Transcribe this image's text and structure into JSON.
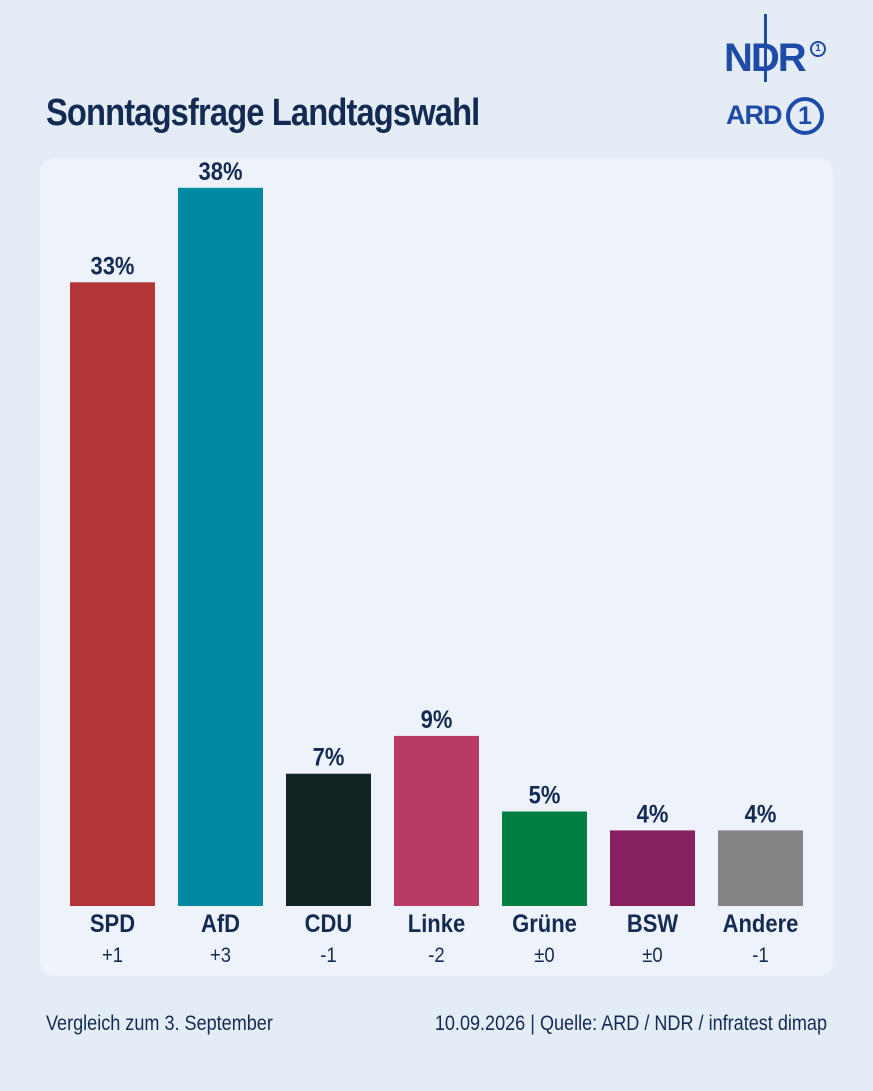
{
  "header": {
    "title": "Sonntagsfrage Landtagswahl",
    "logo_ndr": "NDR",
    "logo_ndr_mark": "1",
    "logo_ard": "ARD",
    "logo_ard_mark": "1"
  },
  "footer": {
    "comparison": "Vergleich zum 3. September",
    "source": "10.09.2026  |  Quelle: ARD / NDR / infratest dimap"
  },
  "chart_data": {
    "type": "bar",
    "title": "Sonntagsfrage Landtagswahl",
    "categories": [
      "SPD",
      "AfD",
      "CDU",
      "Linke",
      "Grüne",
      "BSW",
      "Andere"
    ],
    "values": [
      33,
      38,
      7,
      9,
      5,
      4,
      4
    ],
    "value_labels": [
      "33%",
      "38%",
      "7%",
      "9%",
      "5%",
      "4%",
      "4%"
    ],
    "changes": [
      "+1",
      "+3",
      "-1",
      "-2",
      "±0",
      "±0",
      "-1"
    ],
    "colors": [
      "#b23636",
      "#0089a0",
      "#132424",
      "#b83b64",
      "#007f43",
      "#86205f",
      "#848484"
    ],
    "ylim": [
      0,
      40
    ],
    "grid": false,
    "legend": "none"
  }
}
